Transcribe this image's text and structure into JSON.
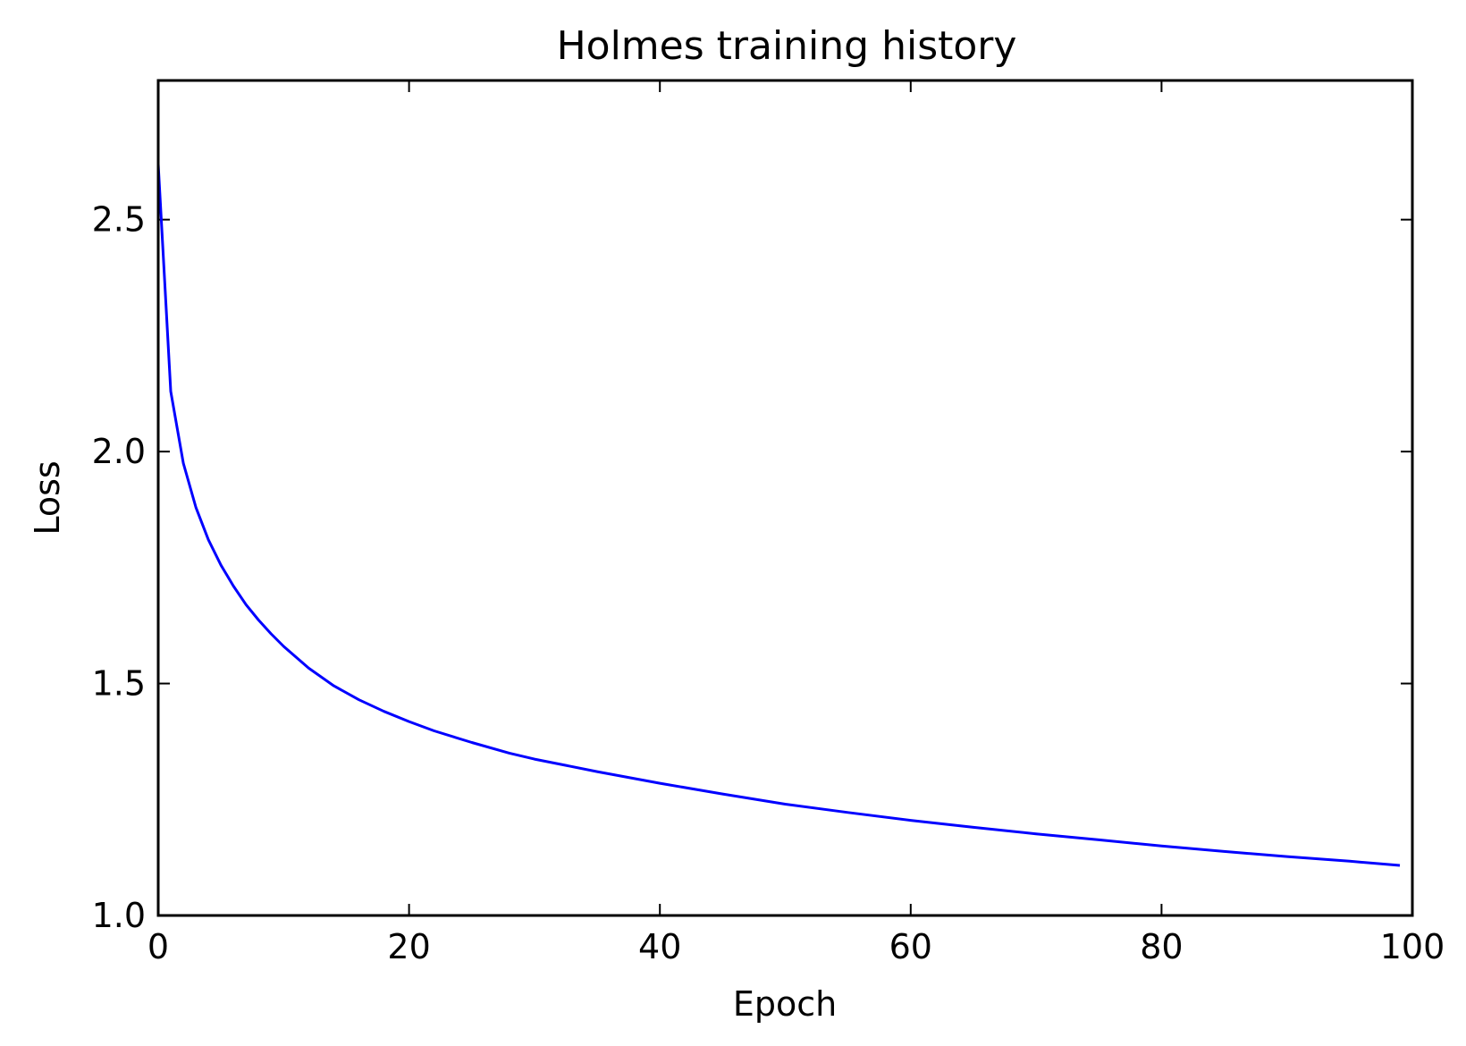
{
  "chart_data": {
    "type": "line",
    "title": "Holmes training history",
    "xlabel": "Epoch",
    "ylabel": "Loss",
    "xlim": [
      0,
      100
    ],
    "ylim": [
      1.0,
      2.8
    ],
    "xticks": [
      0,
      20,
      40,
      60,
      80,
      100
    ],
    "xtick_labels": [
      "0",
      "20",
      "40",
      "60",
      "80",
      "100"
    ],
    "yticks": [
      1.0,
      1.5,
      2.0,
      2.5
    ],
    "ytick_labels": [
      "1.0",
      "1.5",
      "2.0",
      "2.5"
    ],
    "grid": false,
    "series": [
      {
        "color": "#0000ff",
        "x": [
          0,
          1,
          2,
          3,
          4,
          5,
          6,
          7,
          8,
          9,
          10,
          12,
          14,
          16,
          18,
          20,
          22,
          25,
          28,
          30,
          35,
          40,
          45,
          50,
          55,
          60,
          65,
          70,
          75,
          80,
          85,
          90,
          95,
          99
        ],
        "y": [
          2.62,
          2.13,
          1.975,
          1.88,
          1.81,
          1.755,
          1.71,
          1.67,
          1.637,
          1.607,
          1.58,
          1.533,
          1.495,
          1.465,
          1.44,
          1.418,
          1.398,
          1.373,
          1.35,
          1.337,
          1.31,
          1.285,
          1.262,
          1.24,
          1.222,
          1.205,
          1.19,
          1.176,
          1.163,
          1.15,
          1.138,
          1.127,
          1.117,
          1.108
        ]
      }
    ]
  },
  "colors": {
    "line": "#0000ff",
    "axes": "#000000",
    "background": "#ffffff"
  }
}
